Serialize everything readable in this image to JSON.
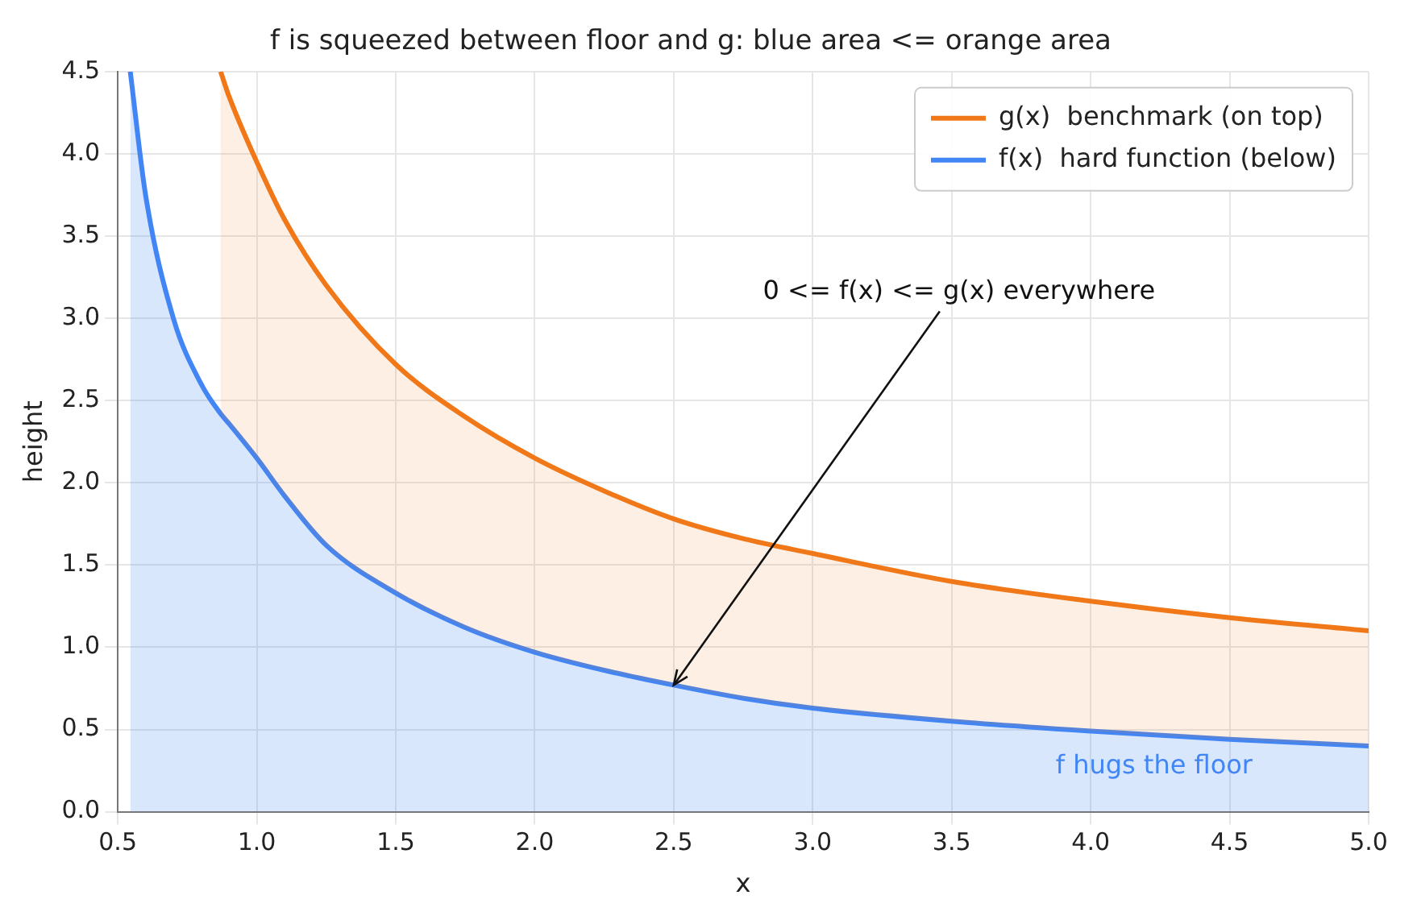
{
  "chart_data": {
    "type": "area",
    "title": "f is squeezed between floor and g: blue area <= orange area",
    "xlabel": "x",
    "ylabel": "height",
    "x": [
      0.545,
      0.6,
      0.7,
      0.8,
      0.87,
      0.9,
      1.0,
      1.1,
      1.25,
      1.5,
      1.75,
      2.0,
      2.25,
      2.5,
      2.75,
      3.0,
      3.5,
      4.0,
      4.5,
      5.0
    ],
    "series": [
      {
        "name": "g(x)  benchmark (on top)",
        "color": "#f07818",
        "values": [
          null,
          null,
          null,
          null,
          4.5,
          4.35,
          3.95,
          3.6,
          3.2,
          2.72,
          2.4,
          2.15,
          1.95,
          1.78,
          1.66,
          1.57,
          1.4,
          1.28,
          1.18,
          1.1
        ]
      },
      {
        "name": "f(x)  hard function (below)",
        "color": "#4285f4",
        "values": [
          4.5,
          3.75,
          3.0,
          2.6,
          2.42,
          2.36,
          2.15,
          1.92,
          1.62,
          1.33,
          1.12,
          0.97,
          0.86,
          0.77,
          0.69,
          0.63,
          0.55,
          0.49,
          0.44,
          0.4
        ]
      }
    ],
    "xlim": [
      0.5,
      5.0
    ],
    "xticks": [
      0.5,
      {
        "value": 1,
        "label": "1.0"
      },
      1.5,
      {
        "value": 2,
        "label": "2.0"
      },
      2.5,
      {
        "value": 3,
        "label": "3.0"
      },
      3.5,
      {
        "value": 4,
        "label": "4.0"
      },
      4.5,
      {
        "value": 5,
        "label": "5.0"
      }
    ],
    "ylim": [
      0,
      4.5
    ],
    "yticks": [
      {
        "value": 0,
        "label": "0.0"
      },
      0.5,
      {
        "value": 1,
        "label": "1.0"
      },
      1.5,
      {
        "value": 2,
        "label": "2.0"
      },
      2.5,
      {
        "value": 3,
        "label": "3.0"
      },
      3.5,
      {
        "value": 4,
        "label": "4.0"
      },
      4.5
    ],
    "grid": true,
    "legend": "top right",
    "annotations": [
      {
        "text": "0 <= f(x) <= g(x) everywhere",
        "x": 2.5,
        "y": 0.77
      },
      "f hugs the floor"
    ]
  }
}
